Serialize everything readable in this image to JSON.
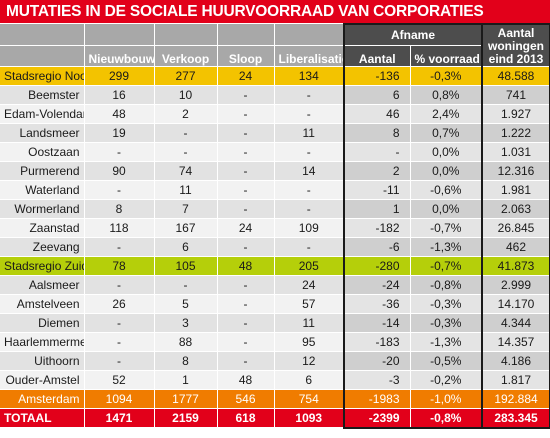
{
  "title": "MUTATIES IN DE SOCIALE HUURVOORRAAD VAN CORPORATIES",
  "header": {
    "afname_group": "Afname",
    "columns": [
      "Nieuwbouw",
      "Verkoop",
      "Sloop",
      "Liberalisatie",
      "Aantal",
      "% voorraad",
      "Aantal woningen eind 2013"
    ],
    "last_col_line1": "Aantal",
    "last_col_line2": "woningen",
    "last_col_line3": "eind 2013"
  },
  "rows": [
    {
      "name": "Stadsregio Noord",
      "style": "y",
      "cells": [
        "299",
        "277",
        "24",
        "134",
        "-136",
        "-0,3%",
        "48.588"
      ]
    },
    {
      "name": "Beemster",
      "style": "odd",
      "cells": [
        "16",
        "10",
        "-",
        "-",
        "6",
        "0,8%",
        "741"
      ]
    },
    {
      "name": "Edam-Volendam",
      "style": "even",
      "cells": [
        "48",
        "2",
        "-",
        "-",
        "46",
        "2,4%",
        "1.927"
      ]
    },
    {
      "name": "Landsmeer",
      "style": "odd",
      "cells": [
        "19",
        "-",
        "-",
        "11",
        "8",
        "0,7%",
        "1.222"
      ]
    },
    {
      "name": "Oostzaan",
      "style": "even",
      "cells": [
        "-",
        "-",
        "-",
        "-",
        "-",
        "0,0%",
        "1.031"
      ]
    },
    {
      "name": "Purmerend",
      "style": "odd",
      "cells": [
        "90",
        "74",
        "-",
        "14",
        "2",
        "0,0%",
        "12.316"
      ]
    },
    {
      "name": "Waterland",
      "style": "even",
      "cells": [
        "-",
        "11",
        "-",
        "-",
        "-11",
        "-0,6%",
        "1.981"
      ]
    },
    {
      "name": "Wormerland",
      "style": "odd",
      "cells": [
        "8",
        "7",
        "-",
        "-",
        "1",
        "0,0%",
        "2.063"
      ]
    },
    {
      "name": "Zaanstad",
      "style": "even",
      "cells": [
        "118",
        "167",
        "24",
        "109",
        "-182",
        "-0,7%",
        "26.845"
      ]
    },
    {
      "name": "Zeevang",
      "style": "odd",
      "cells": [
        "-",
        "6",
        "-",
        "-",
        "-6",
        "-1,3%",
        "462"
      ]
    },
    {
      "name": "Stadsregio Zuid",
      "style": "g",
      "cells": [
        "78",
        "105",
        "48",
        "205",
        "-280",
        "-0,7%",
        "41.873"
      ]
    },
    {
      "name": "Aalsmeer",
      "style": "odd",
      "cells": [
        "-",
        "-",
        "-",
        "24",
        "-24",
        "-0,8%",
        "2.999"
      ]
    },
    {
      "name": "Amstelveen",
      "style": "even",
      "cells": [
        "26",
        "5",
        "-",
        "57",
        "-36",
        "-0,3%",
        "14.170"
      ]
    },
    {
      "name": "Diemen",
      "style": "odd",
      "cells": [
        "-",
        "3",
        "-",
        "11",
        "-14",
        "-0,3%",
        "4.344"
      ]
    },
    {
      "name": "Haarlemmermeer",
      "style": "even",
      "cells": [
        "-",
        "88",
        "-",
        "95",
        "-183",
        "-1,3%",
        "14.357"
      ]
    },
    {
      "name": "Uithoorn",
      "style": "odd",
      "cells": [
        "-",
        "8",
        "-",
        "12",
        "-20",
        "-0,5%",
        "4.186"
      ]
    },
    {
      "name": "Ouder-Amstel",
      "style": "even",
      "cells": [
        "52",
        "1",
        "48",
        "6",
        "-3",
        "-0,2%",
        "1.817"
      ]
    },
    {
      "name": "Amsterdam",
      "style": "o",
      "cells": [
        "1094",
        "1777",
        "546",
        "754",
        "-1983",
        "-1,0%",
        "192.884"
      ]
    },
    {
      "name": "TOTAAL",
      "style": "tot",
      "cells": [
        "1471",
        "2159",
        "618",
        "1093",
        "-2399",
        "-0,8%",
        "283.345"
      ]
    }
  ],
  "colors": {
    "title_red": "#e2001a",
    "header_grey": "#a8a8a8",
    "header_dark": "#4d4d4d",
    "noord_yellow": "#f3c300",
    "zuid_green": "#b5cf0a",
    "amsterdam_orange": "#f07c00"
  }
}
